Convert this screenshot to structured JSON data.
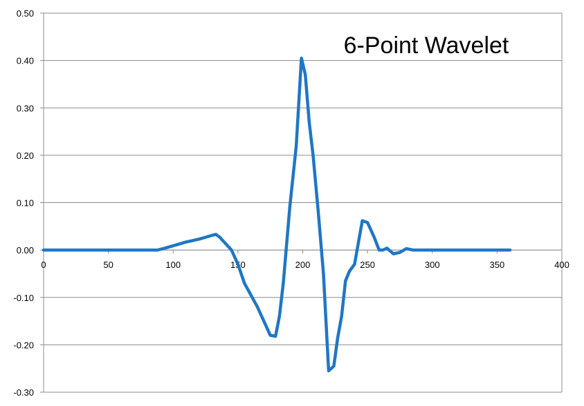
{
  "chart_data": {
    "type": "line",
    "title": "6-Point  Wavelet",
    "xlabel": "",
    "ylabel": "",
    "xlim": [
      0,
      400
    ],
    "ylim": [
      -0.3,
      0.5
    ],
    "x_ticks": [
      0,
      50,
      100,
      150,
      200,
      250,
      300,
      350,
      400
    ],
    "y_ticks": [
      0.5,
      0.4,
      0.3,
      0.2,
      0.1,
      0.0,
      -0.1,
      -0.2,
      -0.3
    ],
    "x_tick_labels": [
      "0",
      "50",
      "100",
      "150",
      "200",
      "250",
      "300",
      "350",
      "400"
    ],
    "y_tick_labels": [
      "0.50",
      "0.40",
      "0.30",
      "0.20",
      "0.10",
      "0.00",
      "-0.10",
      "-0.20",
      "-0.30"
    ],
    "grid": "horizontal",
    "legend": "none",
    "series": [
      {
        "color": "#1f77c4",
        "x": [
          0,
          20,
          40,
          60,
          80,
          88,
          95,
          100,
          105,
          110,
          115,
          120,
          125,
          130,
          133,
          136,
          140,
          145,
          150,
          155,
          160,
          165,
          170,
          175,
          179,
          182,
          185,
          190,
          195,
          199,
          202,
          205,
          208,
          212,
          216,
          220,
          224,
          227,
          230,
          233,
          236,
          240,
          246,
          250,
          255,
          259,
          262,
          265,
          270,
          275,
          280,
          285,
          290,
          300,
          320,
          340,
          360
        ],
        "y": [
          0.0,
          0.0,
          0.0,
          0.0,
          0.0,
          0.0,
          0.005,
          0.009,
          0.013,
          0.017,
          0.02,
          0.023,
          0.027,
          0.031,
          0.033,
          0.027,
          0.015,
          0.0,
          -0.03,
          -0.07,
          -0.095,
          -0.12,
          -0.15,
          -0.18,
          -0.182,
          -0.14,
          -0.07,
          0.09,
          0.22,
          0.405,
          0.37,
          0.27,
          0.2,
          0.08,
          -0.05,
          -0.255,
          -0.245,
          -0.185,
          -0.14,
          -0.065,
          -0.045,
          -0.03,
          0.062,
          0.058,
          0.028,
          0.0,
          0.0,
          0.004,
          -0.008,
          -0.005,
          0.003,
          0.0,
          0.0,
          0.0,
          0.0,
          0.0,
          0.0
        ]
      }
    ]
  }
}
